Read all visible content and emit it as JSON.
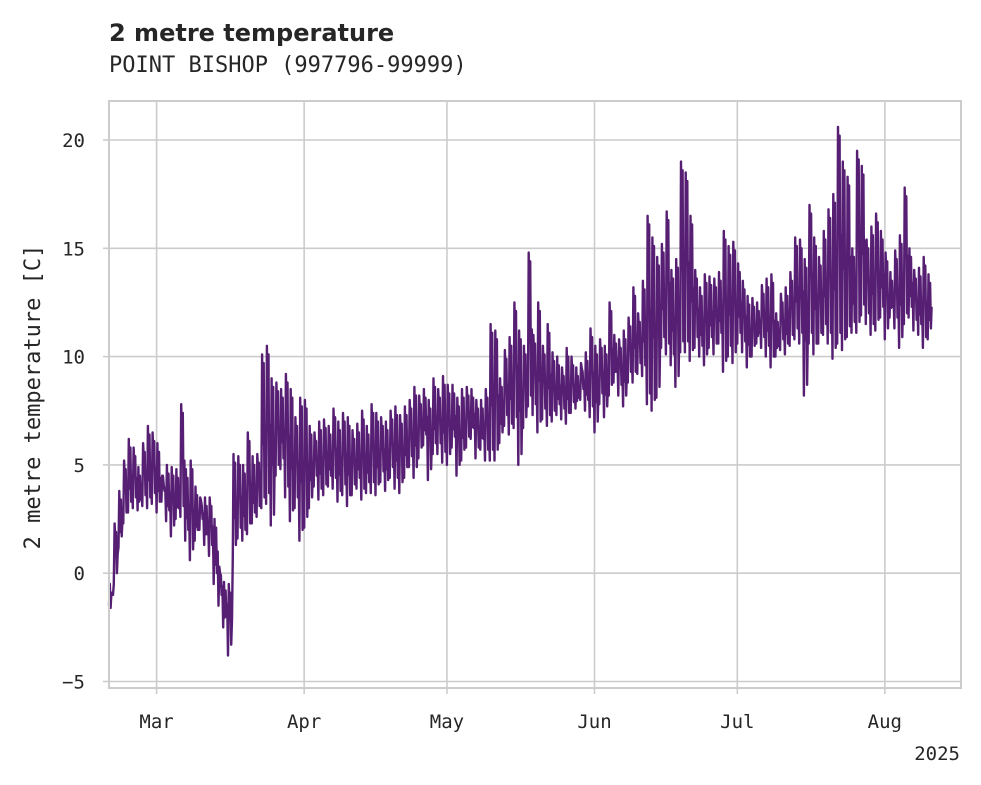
{
  "chart_data": {
    "type": "line",
    "title": "2 metre temperature",
    "subtitle": "POINT BISHOP (997796-99999)",
    "ylabel": "2 metre temperature [C]",
    "xlabel": "",
    "year_label": "2025",
    "x_range": [
      "2025-02-19",
      "2025-08-17"
    ],
    "ylim": [
      -5.3,
      21.8
    ],
    "y_ticks": [
      -5,
      0,
      5,
      10,
      15,
      20
    ],
    "x_ticks": [
      {
        "date": "2025-03-01",
        "label": "Mar"
      },
      {
        "date": "2025-04-01",
        "label": "Apr"
      },
      {
        "date": "2025-05-01",
        "label": "May"
      },
      {
        "date": "2025-06-01",
        "label": "Jun"
      },
      {
        "date": "2025-07-01",
        "label": "Jul"
      },
      {
        "date": "2025-08-01",
        "label": "Aug"
      }
    ],
    "grid": true,
    "line_color": "#561f73",
    "series": [
      {
        "x": [
          "2025-02-19",
          "2025-02-20",
          "2025-02-21",
          "2025-02-22",
          "2025-02-23",
          "2025-02-24",
          "2025-02-25",
          "2025-02-26",
          "2025-02-27",
          "2025-02-28",
          "2025-03-01",
          "2025-03-02",
          "2025-03-03",
          "2025-03-04",
          "2025-03-05",
          "2025-03-06",
          "2025-03-07",
          "2025-03-08",
          "2025-03-09",
          "2025-03-10",
          "2025-03-11",
          "2025-03-12",
          "2025-03-13",
          "2025-03-14",
          "2025-03-15",
          "2025-03-16",
          "2025-03-17",
          "2025-03-18",
          "2025-03-19",
          "2025-03-20",
          "2025-03-21",
          "2025-03-22",
          "2025-03-23",
          "2025-03-24",
          "2025-03-25",
          "2025-03-26",
          "2025-03-27",
          "2025-03-28",
          "2025-03-29",
          "2025-03-30",
          "2025-03-31",
          "2025-04-01",
          "2025-04-02",
          "2025-04-03",
          "2025-04-04",
          "2025-04-05",
          "2025-04-06",
          "2025-04-07",
          "2025-04-08",
          "2025-04-09",
          "2025-04-10",
          "2025-04-11",
          "2025-04-12",
          "2025-04-13",
          "2025-04-14",
          "2025-04-15",
          "2025-04-16",
          "2025-04-17",
          "2025-04-18",
          "2025-04-19",
          "2025-04-20",
          "2025-04-21",
          "2025-04-22",
          "2025-04-23",
          "2025-04-24",
          "2025-04-25",
          "2025-04-26",
          "2025-04-27",
          "2025-04-28",
          "2025-04-29",
          "2025-04-30",
          "2025-05-01",
          "2025-05-02",
          "2025-05-03",
          "2025-05-04",
          "2025-05-05",
          "2025-05-06",
          "2025-05-07",
          "2025-05-08",
          "2025-05-09",
          "2025-05-10",
          "2025-05-11",
          "2025-05-12",
          "2025-05-13",
          "2025-05-14",
          "2025-05-15",
          "2025-05-16",
          "2025-05-17",
          "2025-05-18",
          "2025-05-19",
          "2025-05-20",
          "2025-05-21",
          "2025-05-22",
          "2025-05-23",
          "2025-05-24",
          "2025-05-25",
          "2025-05-26",
          "2025-05-27",
          "2025-05-28",
          "2025-05-29",
          "2025-05-30",
          "2025-05-31",
          "2025-06-01",
          "2025-06-02",
          "2025-06-03",
          "2025-06-04",
          "2025-06-05",
          "2025-06-06",
          "2025-06-07",
          "2025-06-08",
          "2025-06-09",
          "2025-06-10",
          "2025-06-11",
          "2025-06-12",
          "2025-06-13",
          "2025-06-14",
          "2025-06-15",
          "2025-06-16",
          "2025-06-17",
          "2025-06-18",
          "2025-06-19",
          "2025-06-20",
          "2025-06-21",
          "2025-06-22",
          "2025-06-23",
          "2025-06-24",
          "2025-06-25",
          "2025-06-26",
          "2025-06-27",
          "2025-06-28",
          "2025-06-29",
          "2025-06-30",
          "2025-07-01",
          "2025-07-02",
          "2025-07-03",
          "2025-07-04",
          "2025-07-05",
          "2025-07-06",
          "2025-07-07",
          "2025-07-08",
          "2025-07-09",
          "2025-07-10",
          "2025-07-11",
          "2025-07-12",
          "2025-07-13",
          "2025-07-14",
          "2025-07-15",
          "2025-07-16",
          "2025-07-17",
          "2025-07-18",
          "2025-07-19",
          "2025-07-20",
          "2025-07-21",
          "2025-07-22",
          "2025-07-23",
          "2025-07-24",
          "2025-07-25",
          "2025-07-26",
          "2025-07-27",
          "2025-07-28",
          "2025-07-29",
          "2025-07-30",
          "2025-07-31",
          "2025-08-01",
          "2025-08-02",
          "2025-08-03",
          "2025-08-04",
          "2025-08-05",
          "2025-08-06",
          "2025-08-07",
          "2025-08-08",
          "2025-08-09",
          "2025-08-10",
          "2025-08-11",
          "2025-08-12",
          "2025-08-13",
          "2025-08-14",
          "2025-08-15",
          "2025-08-16"
        ],
        "min": [
          -1.5,
          -0.5,
          1.2,
          2.3,
          2.8,
          3.0,
          2.9,
          3.1,
          3.0,
          3.2,
          2.8,
          3.3,
          2.4,
          1.7,
          2.5,
          2.6,
          1.5,
          0.6,
          1.5,
          2.0,
          1.3,
          0.8,
          -0.5,
          -1.5,
          -2.5,
          -3.8,
          0.8,
          1.6,
          1.5,
          1.8,
          2.3,
          2.6,
          3.0,
          3.2,
          2.2,
          4.5,
          4.8,
          3.5,
          2.4,
          3.0,
          1.5,
          2.1,
          3.0,
          4.0,
          3.4,
          3.6,
          4.0,
          3.9,
          3.3,
          3.6,
          3.1,
          3.6,
          3.9,
          3.4,
          3.7,
          3.7,
          3.6,
          4.2,
          3.8,
          4.4,
          3.9,
          3.7,
          4.4,
          4.9,
          4.4,
          5.3,
          5.9,
          4.3,
          5.5,
          5.5,
          5.1,
          5.0,
          5.8,
          4.5,
          5.2,
          5.8,
          6.2,
          5.3,
          5.7,
          5.2,
          5.2,
          5.2,
          6.0,
          6.8,
          6.4,
          6.7,
          5.0,
          6.7,
          7.7,
          7.3,
          6.5,
          7.1,
          6.8,
          7.0,
          7.3,
          7.1,
          6.9,
          7.4,
          7.6,
          8.0,
          7.5,
          7.2,
          6.5,
          7.8,
          7.2,
          8.2,
          8.8,
          8.2,
          7.7,
          8.8,
          8.8,
          9.2,
          9.1,
          7.8,
          7.5,
          8.1,
          10.4,
          10.1,
          9.6,
          8.6,
          10.2,
          10.2,
          9.8,
          10.4,
          10.0,
          9.6,
          10.4,
          10.1,
          10.6,
          9.3,
          10.0,
          9.7,
          10.6,
          10.2,
          9.5,
          10.0,
          10.6,
          10.4,
          10.0,
          9.5,
          10.0,
          10.3,
          10.1,
          10.5,
          10.8,
          10.6,
          8.2,
          10.6,
          10.1,
          10.6,
          11.0,
          10.6,
          9.9,
          10.6,
          10.3,
          10.9,
          11.1,
          11.1,
          11.9,
          11.5,
          11.0,
          11.2,
          11.8,
          10.8,
          11.8,
          11.3,
          10.4,
          11.5,
          11.8,
          11.2,
          11.0,
          10.4,
          10.8
        ],
        "max": [
          -0.5,
          2.3,
          3.8,
          5.2,
          6.2,
          5.8,
          4.9,
          6.0,
          6.8,
          6.5,
          6.0,
          4.5,
          5.0,
          4.9,
          4.8,
          7.8,
          4.8,
          5.2,
          4.0,
          3.5,
          3.5,
          3.5,
          2.5,
          0.3,
          -0.4,
          -0.5,
          5.5,
          5.4,
          5.0,
          6.5,
          5.4,
          5.5,
          10.1,
          10.5,
          9.0,
          8.8,
          8.5,
          9.2,
          8.5,
          7.2,
          8.1,
          8.0,
          6.8,
          6.5,
          7.0,
          7.1,
          6.8,
          7.6,
          7.0,
          7.4,
          7.2,
          6.6,
          6.9,
          7.5,
          6.8,
          7.8,
          7.4,
          7.2,
          7.0,
          7.5,
          7.7,
          7.3,
          7.7,
          8.0,
          8.6,
          8.2,
          8.5,
          8.0,
          9.0,
          8.5,
          9.1,
          8.7,
          8.7,
          8.1,
          8.5,
          8.6,
          8.5,
          8.0,
          8.0,
          8.5,
          11.5,
          11.2,
          9.0,
          10.3,
          10.9,
          12.5,
          11.2,
          10.5,
          14.8,
          11.0,
          12.5,
          10.5,
          11.5,
          10.2,
          10.0,
          9.5,
          10.4,
          10.0,
          9.5,
          9.7,
          10.2,
          11.3,
          10.5,
          10.8,
          10.5,
          12.5,
          11.0,
          10.8,
          11.2,
          11.8,
          13.2,
          12.0,
          13.5,
          16.5,
          15.5,
          14.6,
          15.2,
          16.7,
          14.0,
          14.5,
          19.0,
          18.5,
          16.5,
          14.0,
          13.2,
          13.8,
          13.7,
          13.6,
          13.9,
          15.8,
          15.1,
          15.3,
          14.3,
          13.5,
          12.8,
          12.7,
          12.5,
          13.3,
          13.6,
          13.8,
          12.0,
          12.9,
          13.2,
          13.9,
          15.5,
          15.4,
          14.5,
          17.0,
          15.5,
          14.6,
          15.8,
          16.8,
          17.5,
          20.6,
          19.0,
          18.3,
          15.0,
          19.5,
          18.8,
          15.4,
          16.0,
          16.6,
          15.8,
          14.8,
          13.9,
          14.9,
          15.6,
          17.8,
          15.0,
          14.0,
          14.1,
          14.6,
          13.8,
          14.2,
          12.9,
          11.6
        ]
      }
    ]
  }
}
